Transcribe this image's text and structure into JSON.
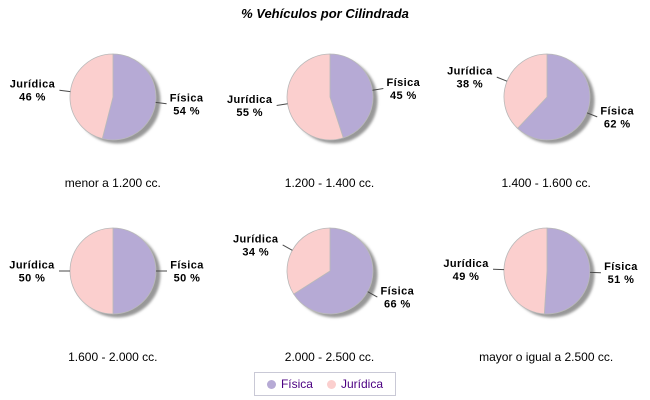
{
  "chart_data": {
    "type": "pie",
    "title": "% Vehículos por Cilindrada",
    "unit": "%",
    "series_labels": [
      "Física",
      "Jurídica"
    ],
    "colors": [
      "#b6aad5",
      "#fbcfce"
    ],
    "legend_position": "bottom",
    "legend_text_color": "#4b0082",
    "shadow_color": "#989898",
    "outline_color": "#b9b9b9",
    "charts": [
      {
        "caption": "menor a 1.200 cc.",
        "values": [
          54,
          46
        ]
      },
      {
        "caption": "1.200 - 1.400 cc.",
        "values": [
          45,
          55
        ]
      },
      {
        "caption": "1.400 - 1.600 cc.",
        "values": [
          62,
          38
        ]
      },
      {
        "caption": "1.600 - 2.000 cc.",
        "values": [
          50,
          50
        ]
      },
      {
        "caption": "2.000 - 2.500 cc.",
        "values": [
          66,
          34
        ]
      },
      {
        "caption": "mayor o igual a 2.500 cc.",
        "values": [
          51,
          49
        ]
      }
    ]
  }
}
